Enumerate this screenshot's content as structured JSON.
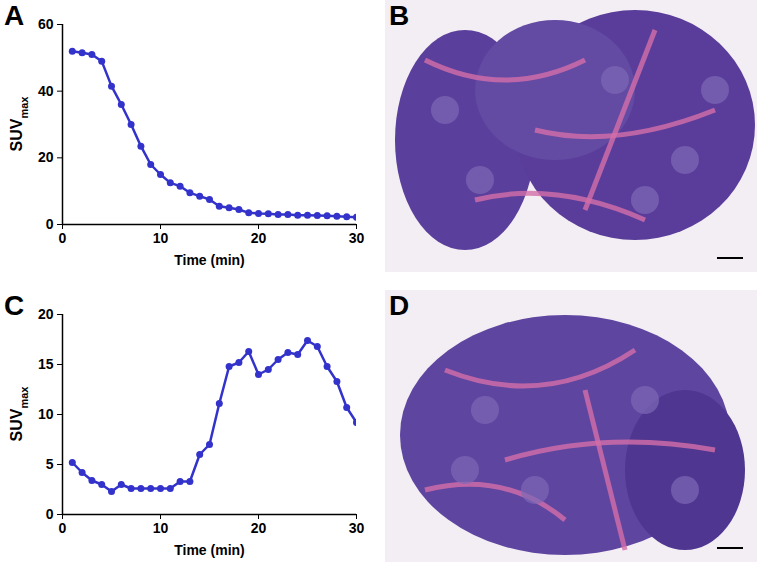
{
  "chart_data": [
    {
      "type": "line",
      "panel": "A",
      "xlabel": "Time (min)",
      "ylabel": "SUV",
      "ylabel_subscript": "max",
      "color": "#3333cc",
      "marker": "circle",
      "line_style": "solid",
      "x": [
        1,
        2,
        3,
        4,
        5,
        6,
        7,
        8,
        9,
        10,
        11,
        12,
        13,
        14,
        15,
        16,
        17,
        18,
        19,
        20,
        21,
        22,
        23,
        24,
        25,
        26,
        27,
        28,
        29,
        30
      ],
      "values": [
        52,
        51.5,
        51,
        49,
        41.5,
        36,
        30,
        23.5,
        18,
        15,
        12.5,
        11.5,
        9.5,
        8.5,
        7.5,
        5.5,
        5,
        4.5,
        3.5,
        3.3,
        3.2,
        3,
        3,
        2.8,
        2.8,
        2.7,
        2.6,
        2.5,
        2.3,
        2.2
      ],
      "xlim": [
        0,
        30
      ],
      "xticks": [
        0,
        10,
        20,
        30
      ],
      "ylim": [
        0,
        60
      ],
      "yticks": [
        0,
        20,
        40,
        60
      ]
    },
    {
      "type": "line",
      "panel": "C",
      "xlabel": "Time (min)",
      "ylabel": "SUV",
      "ylabel_subscript": "max",
      "color": "#3333cc",
      "marker": "circle",
      "line_style": "solid",
      "x": [
        1,
        2,
        3,
        4,
        5,
        6,
        7,
        8,
        9,
        10,
        11,
        12,
        13,
        14,
        15,
        16,
        17,
        18,
        19,
        20,
        21,
        22,
        23,
        24,
        25,
        26,
        27,
        28,
        29,
        30
      ],
      "values": [
        5.2,
        4.2,
        3.4,
        3.0,
        2.3,
        3.0,
        2.6,
        2.6,
        2.6,
        2.6,
        2.6,
        3.3,
        3.3,
        6.0,
        7.0,
        11.1,
        14.8,
        15.2,
        16.3,
        14.0,
        14.5,
        15.5,
        16.2,
        16.0,
        17.4,
        16.8,
        14.8,
        13.3,
        10.7,
        9.2
      ],
      "xlim": [
        0,
        30
      ],
      "xticks": [
        0,
        10,
        20,
        30
      ],
      "ylim": [
        0,
        20
      ],
      "yticks": [
        0,
        5,
        10,
        15,
        20
      ]
    }
  ],
  "images": [
    {
      "panel": "B"
    },
    {
      "panel": "D"
    }
  ]
}
